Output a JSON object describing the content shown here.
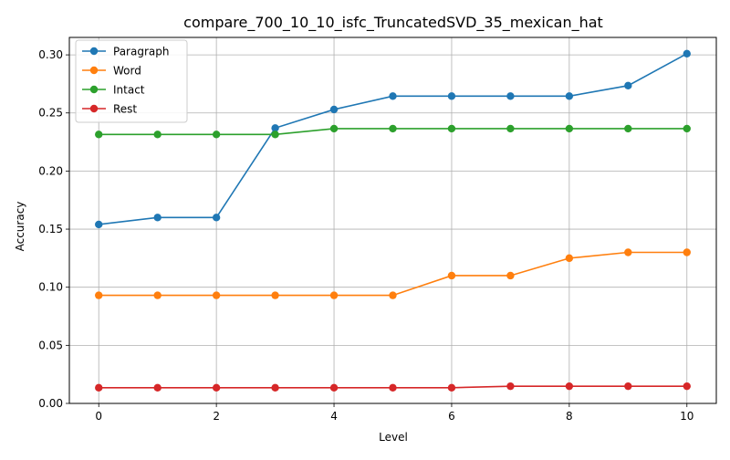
{
  "chart_data": {
    "type": "line",
    "title": "compare_700_10_10_isfc_TruncatedSVD_35_mexican_hat",
    "xlabel": "Level",
    "ylabel": "Accuracy",
    "x": [
      0,
      1,
      2,
      3,
      4,
      5,
      6,
      7,
      8,
      9,
      10
    ],
    "xlim": [
      -0.5,
      10.5
    ],
    "ylim": [
      0.0,
      0.315
    ],
    "xticks": [
      0,
      2,
      4,
      6,
      8,
      10
    ],
    "xtick_labels": [
      "0",
      "2",
      "4",
      "6",
      "8",
      "10"
    ],
    "yticks": [
      0.0,
      0.05,
      0.1,
      0.15,
      0.2,
      0.25,
      0.3
    ],
    "ytick_labels": [
      "0.00",
      "0.05",
      "0.10",
      "0.15",
      "0.20",
      "0.25",
      "0.30"
    ],
    "grid": true,
    "legend_position": "top-left",
    "marker": "circle",
    "series": [
      {
        "name": "Paragraph",
        "color": "#1f77b4",
        "values": [
          0.154,
          0.16,
          0.16,
          0.237,
          0.253,
          0.2645,
          0.2645,
          0.2645,
          0.2645,
          0.2735,
          0.301
        ]
      },
      {
        "name": "Word",
        "color": "#ff7f0e",
        "values": [
          0.093,
          0.093,
          0.093,
          0.093,
          0.093,
          0.093,
          0.11,
          0.11,
          0.125,
          0.13,
          0.13
        ]
      },
      {
        "name": "Intact",
        "color": "#2ca02c",
        "values": [
          0.2315,
          0.2315,
          0.2315,
          0.2315,
          0.2365,
          0.2365,
          0.2365,
          0.2365,
          0.2365,
          0.2365,
          0.2365
        ]
      },
      {
        "name": "Rest",
        "color": "#d62728",
        "values": [
          0.0135,
          0.0135,
          0.0135,
          0.0135,
          0.0135,
          0.0135,
          0.0135,
          0.0148,
          0.0148,
          0.0148,
          0.0148
        ]
      }
    ]
  }
}
